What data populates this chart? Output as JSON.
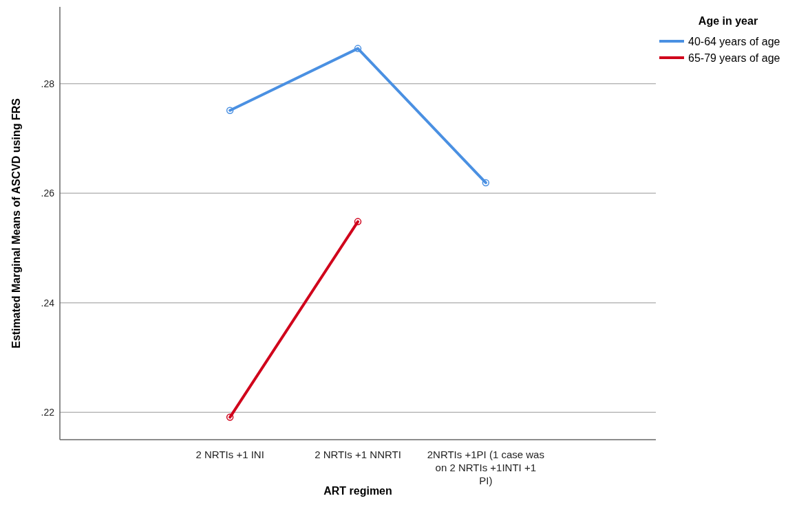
{
  "chart_data": {
    "type": "line",
    "xlabel": "ART regimen",
    "ylabel": "Estimated Marginal Means of ASCVD using FRS",
    "legend_title": "Age in year",
    "categories": [
      "2 NRTIs +1 INI",
      "2 NRTIs +1 NNRTI",
      "2NRTIs +1PI (1 case was on 2 NRTIs +1INTI +1 PI)"
    ],
    "series": [
      {
        "name": "40-64 years of age",
        "color": "#4a90e2",
        "values": [
          0.2751,
          0.2864,
          0.2619
        ]
      },
      {
        "name": "65-79 years of age",
        "color": "#d0021b",
        "values": [
          0.2191,
          0.2548,
          null
        ]
      }
    ],
    "ylim": [
      0.215,
      0.294
    ],
    "yticks": [
      {
        "value": 0.22,
        "label": ".22"
      },
      {
        "value": 0.24,
        "label": ".24"
      },
      {
        "value": 0.26,
        "label": ".26"
      },
      {
        "value": 0.28,
        "label": ".28"
      }
    ],
    "grid": "y",
    "legend": "top right",
    "marker": "circle",
    "line_style": "solid"
  }
}
